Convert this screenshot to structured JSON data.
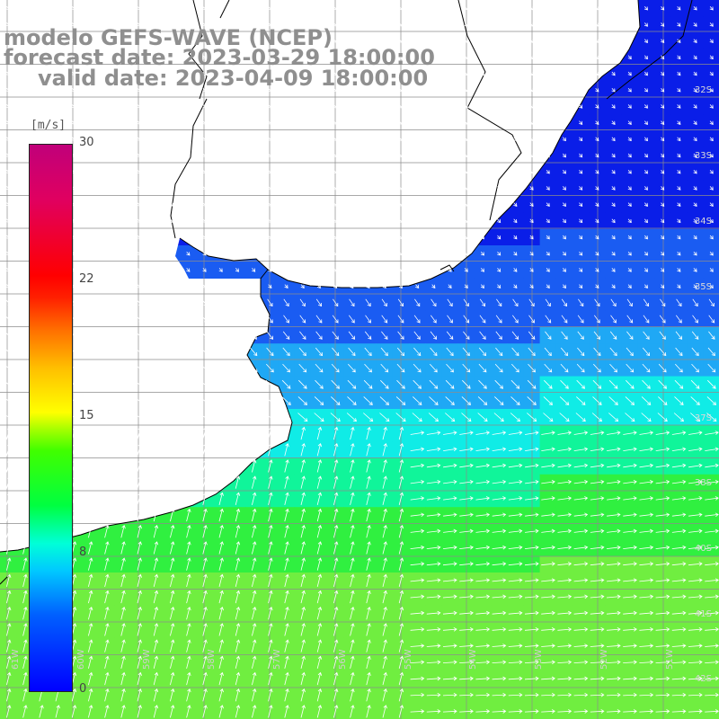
{
  "title": {
    "line1": "modelo GEFS-WAVE (NCEP)",
    "line2": "forecast date: 2023-03-29 18:00:00",
    "line3": "valid date: 2023-04-09 18:00:00"
  },
  "colorbar": {
    "units": "[m/s]",
    "min": 0,
    "max": 30,
    "ticks": [
      "30",
      "22",
      "15",
      "8",
      "0"
    ]
  },
  "lat_labels": [
    "32S",
    "33S",
    "34S",
    "35S",
    "37S",
    "38S",
    "40S",
    "41S",
    "42S"
  ],
  "lon_labels": [
    "61W",
    "60W",
    "59W",
    "58W",
    "57W",
    "56W",
    "55W",
    "54W",
    "53W",
    "52W",
    "51W"
  ],
  "colors": {
    "land": "#ffffff",
    "coast": "#000000",
    "grid": "#8c8c8c",
    "arrow": "#ffffff"
  }
}
